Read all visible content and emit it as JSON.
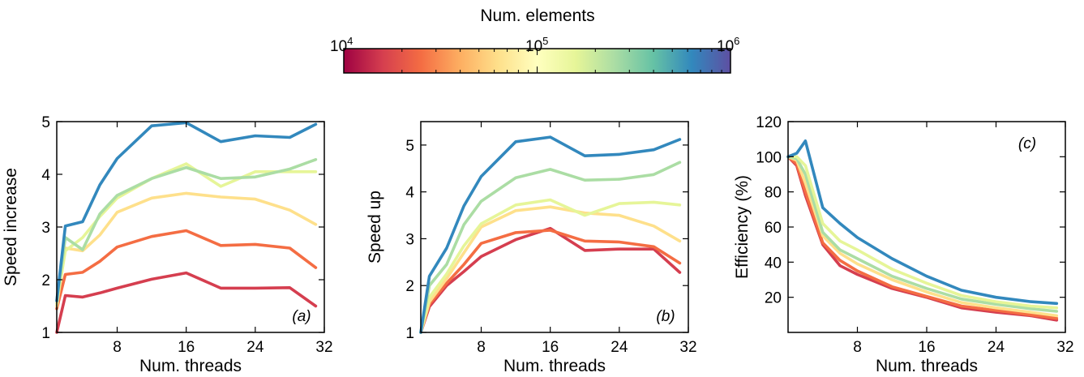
{
  "colorbar": {
    "title": "Num. elements",
    "ticks": [
      "10",
      "10",
      "10"
    ],
    "tick_exponents": [
      "4",
      "5",
      "6"
    ],
    "scale": "log",
    "range": [
      10000,
      1000000
    ],
    "colormap": "Spectral",
    "colors": [
      "#9e0142",
      "#d53e4f",
      "#f46d43",
      "#fdae61",
      "#fee08b",
      "#ffffbf",
      "#e6f598",
      "#abdda4",
      "#66c2a5",
      "#3288bd",
      "#5e4fa2"
    ]
  },
  "chart_data": [
    {
      "type": "line",
      "panel_tag": "(a)",
      "xlabel": "Num. threads",
      "ylabel": "Speed increase",
      "xlim": [
        1,
        32
      ],
      "ylim": [
        1,
        5
      ],
      "xticks": [
        8,
        16,
        24,
        32
      ],
      "yticks": [
        1,
        2,
        3,
        4,
        5
      ],
      "grid": false,
      "x": [
        1,
        2,
        4,
        6,
        8,
        12,
        16,
        20,
        24,
        28,
        31
      ],
      "series": [
        {
          "color": "#d53e4f",
          "values": [
            1.0,
            1.7,
            1.67,
            1.75,
            1.84,
            2.01,
            2.13,
            1.84,
            1.84,
            1.85,
            1.5
          ]
        },
        {
          "color": "#f46d43",
          "values": [
            1.45,
            2.1,
            2.14,
            2.35,
            2.62,
            2.82,
            2.93,
            2.65,
            2.67,
            2.6,
            2.23
          ]
        },
        {
          "color": "#fee08b",
          "values": [
            1.5,
            2.6,
            2.55,
            2.85,
            3.28,
            3.55,
            3.64,
            3.57,
            3.53,
            3.32,
            3.05
          ]
        },
        {
          "color": "#e6f598",
          "values": [
            1.55,
            2.55,
            2.8,
            3.2,
            3.55,
            3.92,
            4.2,
            3.77,
            4.05,
            4.05,
            4.05
          ]
        },
        {
          "color": "#abdda4",
          "values": [
            1.6,
            2.8,
            2.57,
            3.25,
            3.6,
            3.92,
            4.13,
            3.92,
            3.95,
            4.1,
            4.28
          ]
        },
        {
          "color": "#3288bd",
          "values": [
            1.6,
            3.02,
            3.1,
            3.8,
            4.3,
            4.92,
            4.98,
            4.62,
            4.73,
            4.7,
            4.95
          ]
        }
      ]
    },
    {
      "type": "line",
      "panel_tag": "(b)",
      "xlabel": "Num. threads",
      "ylabel": "Speed up",
      "xlim": [
        1,
        32
      ],
      "ylim": [
        1,
        5.5
      ],
      "xticks": [
        8,
        16,
        24,
        32
      ],
      "yticks": [
        1,
        2,
        3,
        4,
        5
      ],
      "grid": false,
      "x": [
        1,
        2,
        4,
        6,
        8,
        12,
        16,
        20,
        24,
        28,
        31
      ],
      "series": [
        {
          "color": "#d53e4f",
          "values": [
            1.0,
            1.55,
            2.0,
            2.3,
            2.62,
            2.98,
            3.22,
            2.75,
            2.78,
            2.78,
            2.28
          ]
        },
        {
          "color": "#f46d43",
          "values": [
            1.0,
            1.6,
            2.05,
            2.45,
            2.9,
            3.13,
            3.18,
            2.95,
            2.93,
            2.83,
            2.48
          ]
        },
        {
          "color": "#fee08b",
          "values": [
            1.0,
            1.65,
            2.15,
            2.7,
            3.25,
            3.6,
            3.68,
            3.55,
            3.5,
            3.27,
            2.95
          ]
        },
        {
          "color": "#e6f598",
          "values": [
            1.0,
            1.75,
            2.25,
            2.85,
            3.32,
            3.72,
            3.83,
            3.5,
            3.75,
            3.78,
            3.72
          ]
        },
        {
          "color": "#abdda4",
          "values": [
            1.0,
            2.0,
            2.45,
            3.3,
            3.8,
            4.3,
            4.48,
            4.25,
            4.27,
            4.37,
            4.63
          ]
        },
        {
          "color": "#3288bd",
          "values": [
            1.0,
            2.2,
            2.8,
            3.7,
            4.33,
            5.07,
            5.17,
            4.77,
            4.8,
            4.9,
            5.12
          ]
        }
      ]
    },
    {
      "type": "line",
      "panel_tag": "(c)",
      "xlabel": "Num. threads",
      "ylabel": "Efficiency (%)",
      "xlim": [
        0,
        32
      ],
      "ylim": [
        0,
        120
      ],
      "xticks": [
        8,
        16,
        24,
        32
      ],
      "yticks": [
        20,
        40,
        60,
        80,
        100,
        120
      ],
      "grid": false,
      "x": [
        0,
        1,
        2,
        4,
        6,
        8,
        12,
        16,
        20,
        24,
        28,
        31
      ],
      "series": [
        {
          "color": "#d53e4f",
          "values": [
            100,
            95,
            78,
            50,
            38,
            33,
            25,
            20,
            14,
            11.5,
            9.5,
            7
          ]
        },
        {
          "color": "#f46d43",
          "values": [
            100,
            96,
            80,
            51,
            41,
            35,
            26,
            20.5,
            15,
            12.5,
            10,
            8
          ]
        },
        {
          "color": "#fee08b",
          "values": [
            100,
            98,
            85,
            55,
            45,
            39,
            30,
            23,
            17,
            14,
            11.5,
            9.5
          ]
        },
        {
          "color": "#abdda4",
          "values": [
            100,
            99,
            90,
            57,
            47,
            42,
            32,
            25,
            19,
            16,
            13.5,
            12
          ]
        },
        {
          "color": "#e6f598",
          "values": [
            100,
            100,
            95,
            62,
            52,
            47,
            36,
            28,
            21,
            17.5,
            15,
            14
          ]
        },
        {
          "color": "#3288bd",
          "values": [
            100,
            102,
            109,
            71,
            62,
            54,
            42,
            32,
            24,
            20,
            17.5,
            16.5
          ]
        }
      ]
    }
  ]
}
